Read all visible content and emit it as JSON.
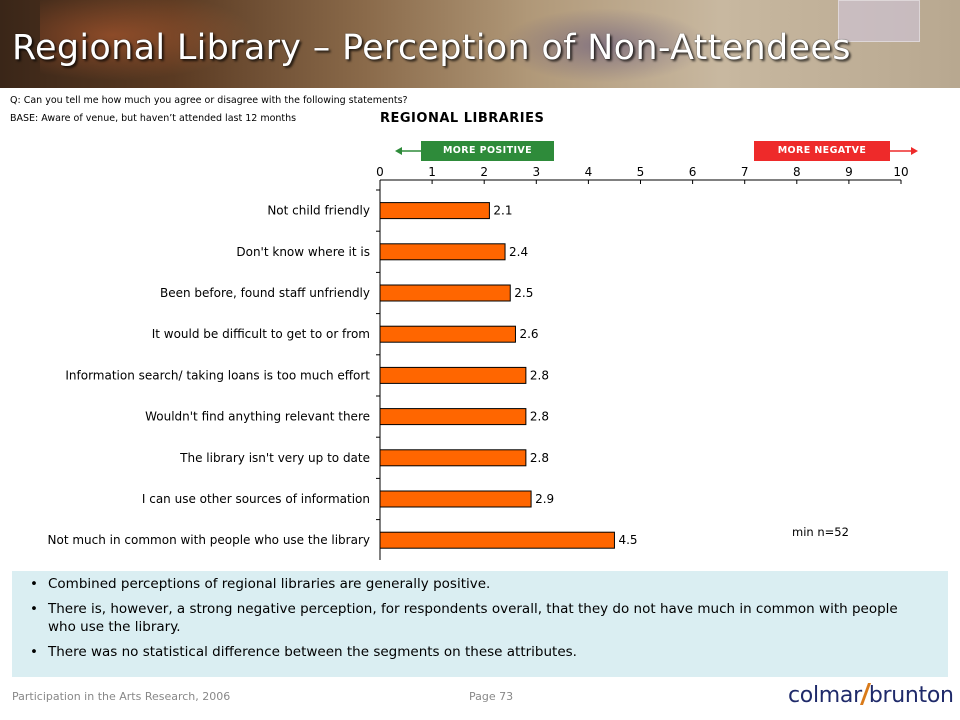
{
  "page": {
    "title": "Regional Library – Perception of Non-Attendees",
    "question": "Q: Can you tell me how much you agree or disagree with the following statements?",
    "base": "BASE: Aware of venue, but haven’t attended last 12 months",
    "min_n": "min n=52",
    "footer_left": "Participation in the Arts Research, 2006",
    "footer_page": "Page 73",
    "logo": {
      "part1": "colmar",
      "part2": "brunton"
    }
  },
  "legend": {
    "positive": "MORE POSITIVE",
    "negative": "MORE NEGATVE",
    "positive_color": "#2e8b3a",
    "negative_color": "#ee2a2a"
  },
  "summary": {
    "bullets": [
      "Combined perceptions of regional libraries are generally positive.",
      "There is, however, a strong negative perception, for respondents overall, that they do not have much in common with people who use the library.",
      "There was no statistical difference between the segments on these attributes."
    ]
  },
  "chart_data": {
    "type": "bar",
    "orientation": "horizontal",
    "title": "REGIONAL LIBRARIES",
    "categories": [
      "Not child friendly",
      "Don't know where it is",
      "Been before, found staff unfriendly",
      "It would be difficult to get to or from",
      "Information search/ taking loans is too much effort",
      "Wouldn't find anything relevant there",
      "The library isn't very up to date",
      "I can use other sources of information",
      "Not much in common with people who use the library"
    ],
    "values": [
      2.1,
      2.4,
      2.5,
      2.6,
      2.8,
      2.8,
      2.8,
      2.9,
      4.5
    ],
    "data_labels": [
      "2.1",
      "2.4",
      "2.5",
      "2.6",
      "2.8",
      "2.8",
      "2.8",
      "2.9",
      "4.5"
    ],
    "xlim": [
      0,
      10
    ],
    "xticks": [
      0,
      1,
      2,
      3,
      4,
      5,
      6,
      7,
      8,
      9,
      10
    ],
    "bar_color": "#ff6600",
    "grid": false
  }
}
